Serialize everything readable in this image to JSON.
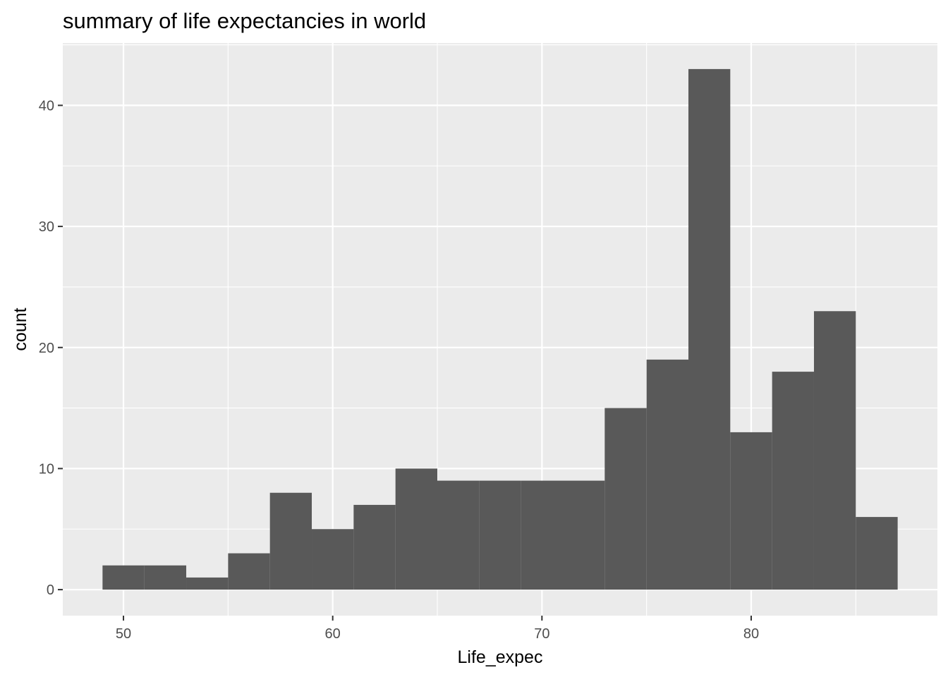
{
  "chart_data": {
    "type": "bar",
    "title": "summary of life expectancies in world",
    "xlabel": "Life_expec",
    "ylabel": "count",
    "bin_width": 2,
    "bins": [
      {
        "x0": 49,
        "x1": 51,
        "count": 2
      },
      {
        "x0": 51,
        "x1": 53,
        "count": 2
      },
      {
        "x0": 53,
        "x1": 55,
        "count": 1
      },
      {
        "x0": 55,
        "x1": 57,
        "count": 3
      },
      {
        "x0": 57,
        "x1": 59,
        "count": 8
      },
      {
        "x0": 59,
        "x1": 61,
        "count": 5
      },
      {
        "x0": 61,
        "x1": 63,
        "count": 7
      },
      {
        "x0": 63,
        "x1": 65,
        "count": 10
      },
      {
        "x0": 65,
        "x1": 67,
        "count": 9
      },
      {
        "x0": 67,
        "x1": 69,
        "count": 9
      },
      {
        "x0": 69,
        "x1": 71,
        "count": 9
      },
      {
        "x0": 71,
        "x1": 73,
        "count": 9
      },
      {
        "x0": 73,
        "x1": 75,
        "count": 15
      },
      {
        "x0": 75,
        "x1": 77,
        "count": 19
      },
      {
        "x0": 77,
        "x1": 79,
        "count": 43
      },
      {
        "x0": 79,
        "x1": 81,
        "count": 13
      },
      {
        "x0": 81,
        "x1": 83,
        "count": 18
      },
      {
        "x0": 83,
        "x1": 85,
        "count": 23
      },
      {
        "x0": 85,
        "x1": 87,
        "count": 6
      }
    ],
    "xlim": [
      47.1,
      88.9
    ],
    "ylim": [
      -2.15,
      45.15
    ],
    "x_ticks": [
      50,
      60,
      70,
      80
    ],
    "x_tick_labels": [
      "50",
      "60",
      "70",
      "80"
    ],
    "y_ticks": [
      0,
      10,
      20,
      30,
      40
    ],
    "y_tick_labels": [
      "0",
      "10",
      "20",
      "30",
      "40"
    ],
    "grid": true,
    "legend": "none",
    "colors": {
      "bar_fill": "#595959",
      "panel_background": "#ebebeb",
      "grid_line": "#ffffff",
      "tick_text": "#4d4d4d",
      "title_text": "#000000"
    }
  }
}
